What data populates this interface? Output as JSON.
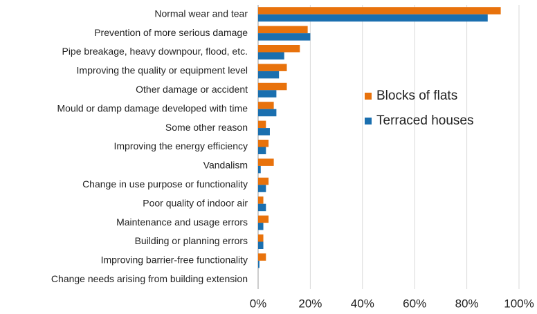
{
  "chart_data": {
    "type": "hbar",
    "categories": [
      "Normal wear and tear",
      "Prevention of more serious damage",
      "Pipe breakage, heavy downpour, flood, etc.",
      "Improving the quality or equipment level",
      "Other damage or accident",
      "Mould or damp damage developed with time",
      "Some other reason",
      "Improving the energy efficiency",
      "Vandalism",
      "Change in use purpose or functionality",
      "Poor quality of indoor air",
      "Maintenance and usage errors",
      "Building or planning errors",
      "Improving barrier-free functionality",
      "Change needs arising from building extension"
    ],
    "series": [
      {
        "name": "Blocks of flats",
        "color": "#e8720c",
        "values": [
          93,
          19,
          16,
          11,
          11,
          6,
          3,
          4,
          6,
          4,
          2,
          4,
          2,
          3,
          0
        ]
      },
      {
        "name": "Terraced houses",
        "color": "#1a6faf",
        "values": [
          88,
          20,
          10,
          8,
          7,
          7,
          4.5,
          3,
          1,
          3,
          3,
          2,
          2,
          0.5,
          0
        ]
      }
    ],
    "xlim": [
      0,
      100
    ],
    "xticks": [
      {
        "value": 0,
        "label": "0%"
      },
      {
        "value": 20,
        "label": "20%"
      },
      {
        "value": 40,
        "label": "40%"
      },
      {
        "value": 60,
        "label": "60%"
      },
      {
        "value": 80,
        "label": "80%"
      },
      {
        "value": 100,
        "label": "100%"
      }
    ],
    "grid": true,
    "legend": "right"
  }
}
